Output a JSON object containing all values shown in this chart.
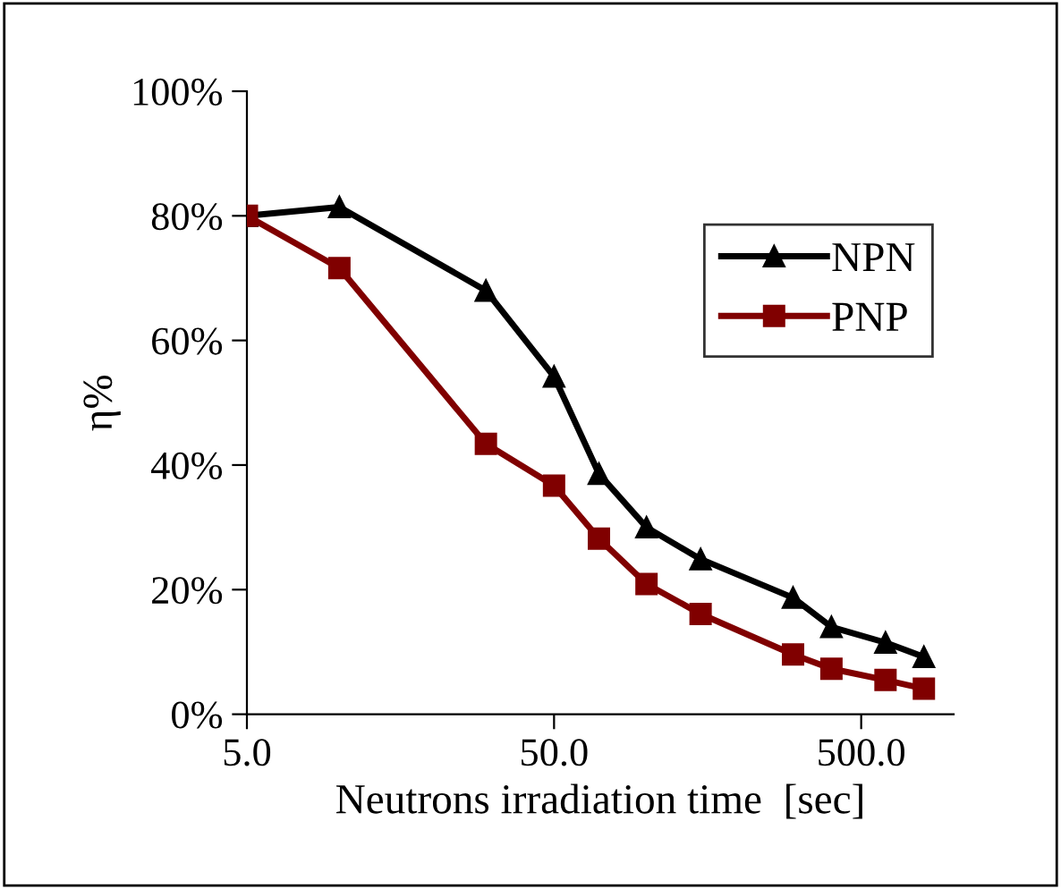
{
  "chart_data": {
    "type": "line",
    "xlabel": "Neutrons irradiation time  [sec]",
    "ylabel": "η%",
    "log": "x",
    "xlim": [
      5,
      1000
    ],
    "xticks": [
      {
        "value": 5,
        "label": "5.0"
      },
      {
        "value": 50,
        "label": "50.0"
      },
      {
        "value": 500,
        "label": "500.0"
      }
    ],
    "ylim": [
      0,
      100
    ],
    "yticks": [
      {
        "value": 0,
        "label": "0%"
      },
      {
        "value": 20,
        "label": "20%"
      },
      {
        "value": 40,
        "label": "40%"
      },
      {
        "value": 60,
        "label": "60%"
      },
      {
        "value": 80,
        "label": "80%"
      },
      {
        "value": 100,
        "label": "100%"
      }
    ],
    "x": [
      5,
      10,
      30,
      50,
      70,
      100,
      150,
      300,
      400,
      600,
      800
    ],
    "series": [
      {
        "name": "NPN",
        "color": "#000000",
        "marker": "triangle",
        "values": [
          80,
          81.4,
          68,
          54.2,
          38.6,
          30,
          24.9,
          18.7,
          14,
          11.5,
          9.2
        ]
      },
      {
        "name": "PNP",
        "color": "#800000",
        "marker": "square",
        "values": [
          80,
          71.6,
          43.4,
          36.7,
          28.2,
          20.9,
          16.1,
          9.6,
          7.3,
          5.5,
          4.1
        ]
      }
    ],
    "grid": false,
    "legend": "right",
    "line_style": "solid"
  }
}
